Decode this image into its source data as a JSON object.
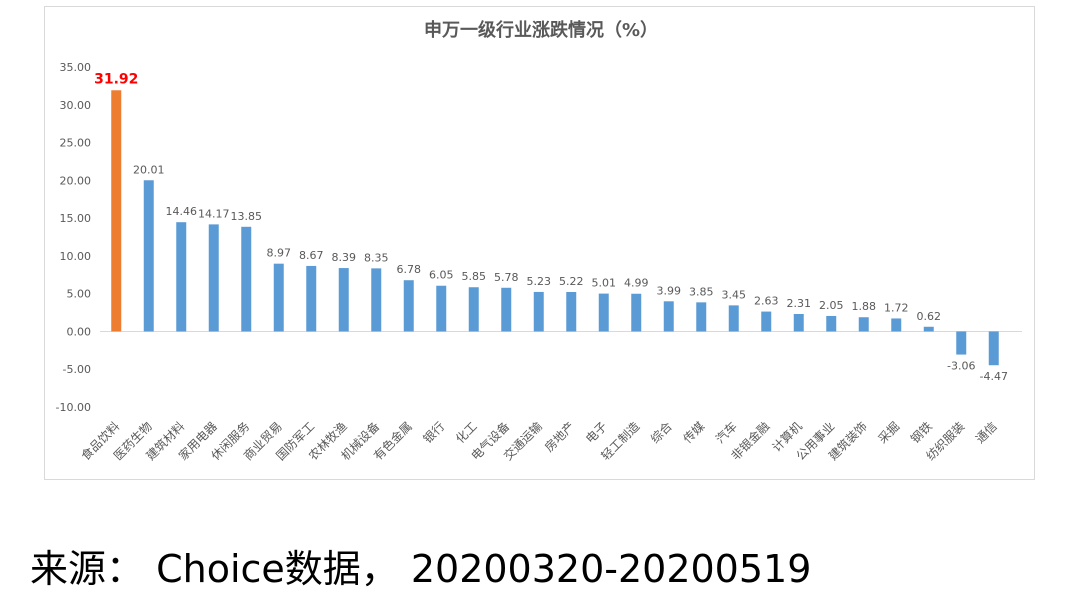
{
  "chart_data": {
    "type": "bar",
    "title": "申万一级行业涨跌情况（%）",
    "categories": [
      "食品饮料",
      "医药生物",
      "建筑材料",
      "家用电器",
      "休闲服务",
      "商业贸易",
      "国防军工",
      "农林牧渔",
      "机械设备",
      "有色金属",
      "银行",
      "化工",
      "电气设备",
      "交通运输",
      "房地产",
      "电子",
      "轻工制造",
      "综合",
      "传媒",
      "汽车",
      "非银金融",
      "计算机",
      "公用事业",
      "建筑装饰",
      "采掘",
      "钢铁",
      "纺织服装",
      "通信"
    ],
    "values": [
      31.92,
      20.01,
      14.46,
      14.17,
      13.85,
      8.97,
      8.67,
      8.39,
      8.35,
      6.78,
      6.05,
      5.85,
      5.78,
      5.23,
      5.22,
      5.01,
      4.99,
      3.99,
      3.85,
      3.45,
      2.63,
      2.31,
      2.05,
      1.88,
      1.72,
      0.62,
      -3.06,
      -4.47
    ],
    "value_labels": [
      "31.92",
      "20.01",
      "14.46",
      "14.17",
      "13.85",
      "8.97",
      "8.67",
      "8.39",
      "8.35",
      "6.78",
      "6.05",
      "5.85",
      "5.78",
      "5.23",
      "5.22",
      "5.01",
      "4.99",
      "3.99",
      "3.85",
      "3.45",
      "2.63",
      "2.31",
      "2.05",
      "1.88",
      "1.72",
      "0.62",
      "-3.06",
      "-4.47"
    ],
    "yticks": [
      "35.00",
      "30.00",
      "25.00",
      "20.00",
      "15.00",
      "10.00",
      "5.00",
      "0.00",
      "-5.00",
      "-10.00"
    ],
    "ylim": [
      -10,
      35
    ],
    "grid": false,
    "legend": "none",
    "colors": {
      "bar": "#5b9bd5",
      "highlight_bar": "#ed7d31",
      "highlight_label": "#ff0000",
      "text": "#595959"
    },
    "highlight_index": 0
  },
  "caption": "来源： Choice数据， 20200320-20200519"
}
